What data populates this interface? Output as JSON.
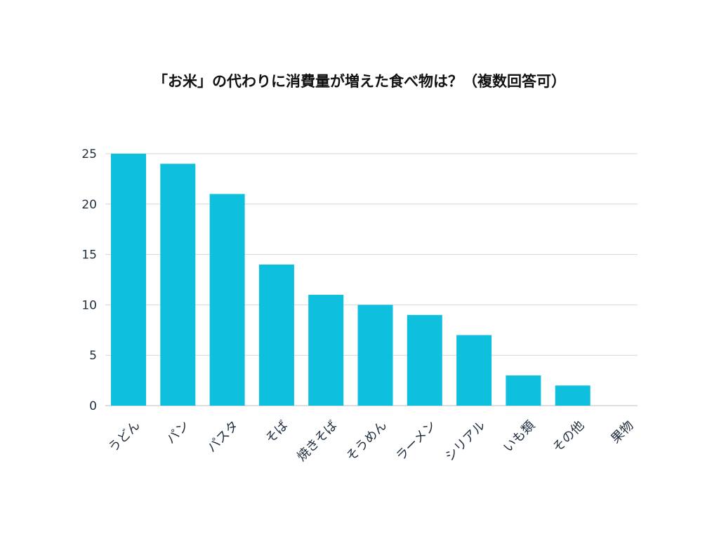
{
  "chart_data": {
    "type": "bar",
    "title": "「お米」の代わりに消費量が増えた食べ物は？（複数回答可）",
    "xlabel": "",
    "ylabel": "",
    "categories": [
      "うどん",
      "パン",
      "パスタ",
      "そば",
      "焼きそば",
      "そうめん",
      "ラーメン",
      "シリアル",
      "いも類",
      "その他",
      "果物"
    ],
    "values": [
      25,
      24,
      21,
      14,
      11,
      10,
      9,
      7,
      3,
      2,
      0
    ],
    "ylim": [
      0,
      25
    ],
    "yticks": [
      0,
      5,
      10,
      15,
      20,
      25
    ],
    "grid": true,
    "colors": {
      "bar": "#0fc0de",
      "grid": "#d6d6d6",
      "axis": "#bdbdbd"
    }
  }
}
